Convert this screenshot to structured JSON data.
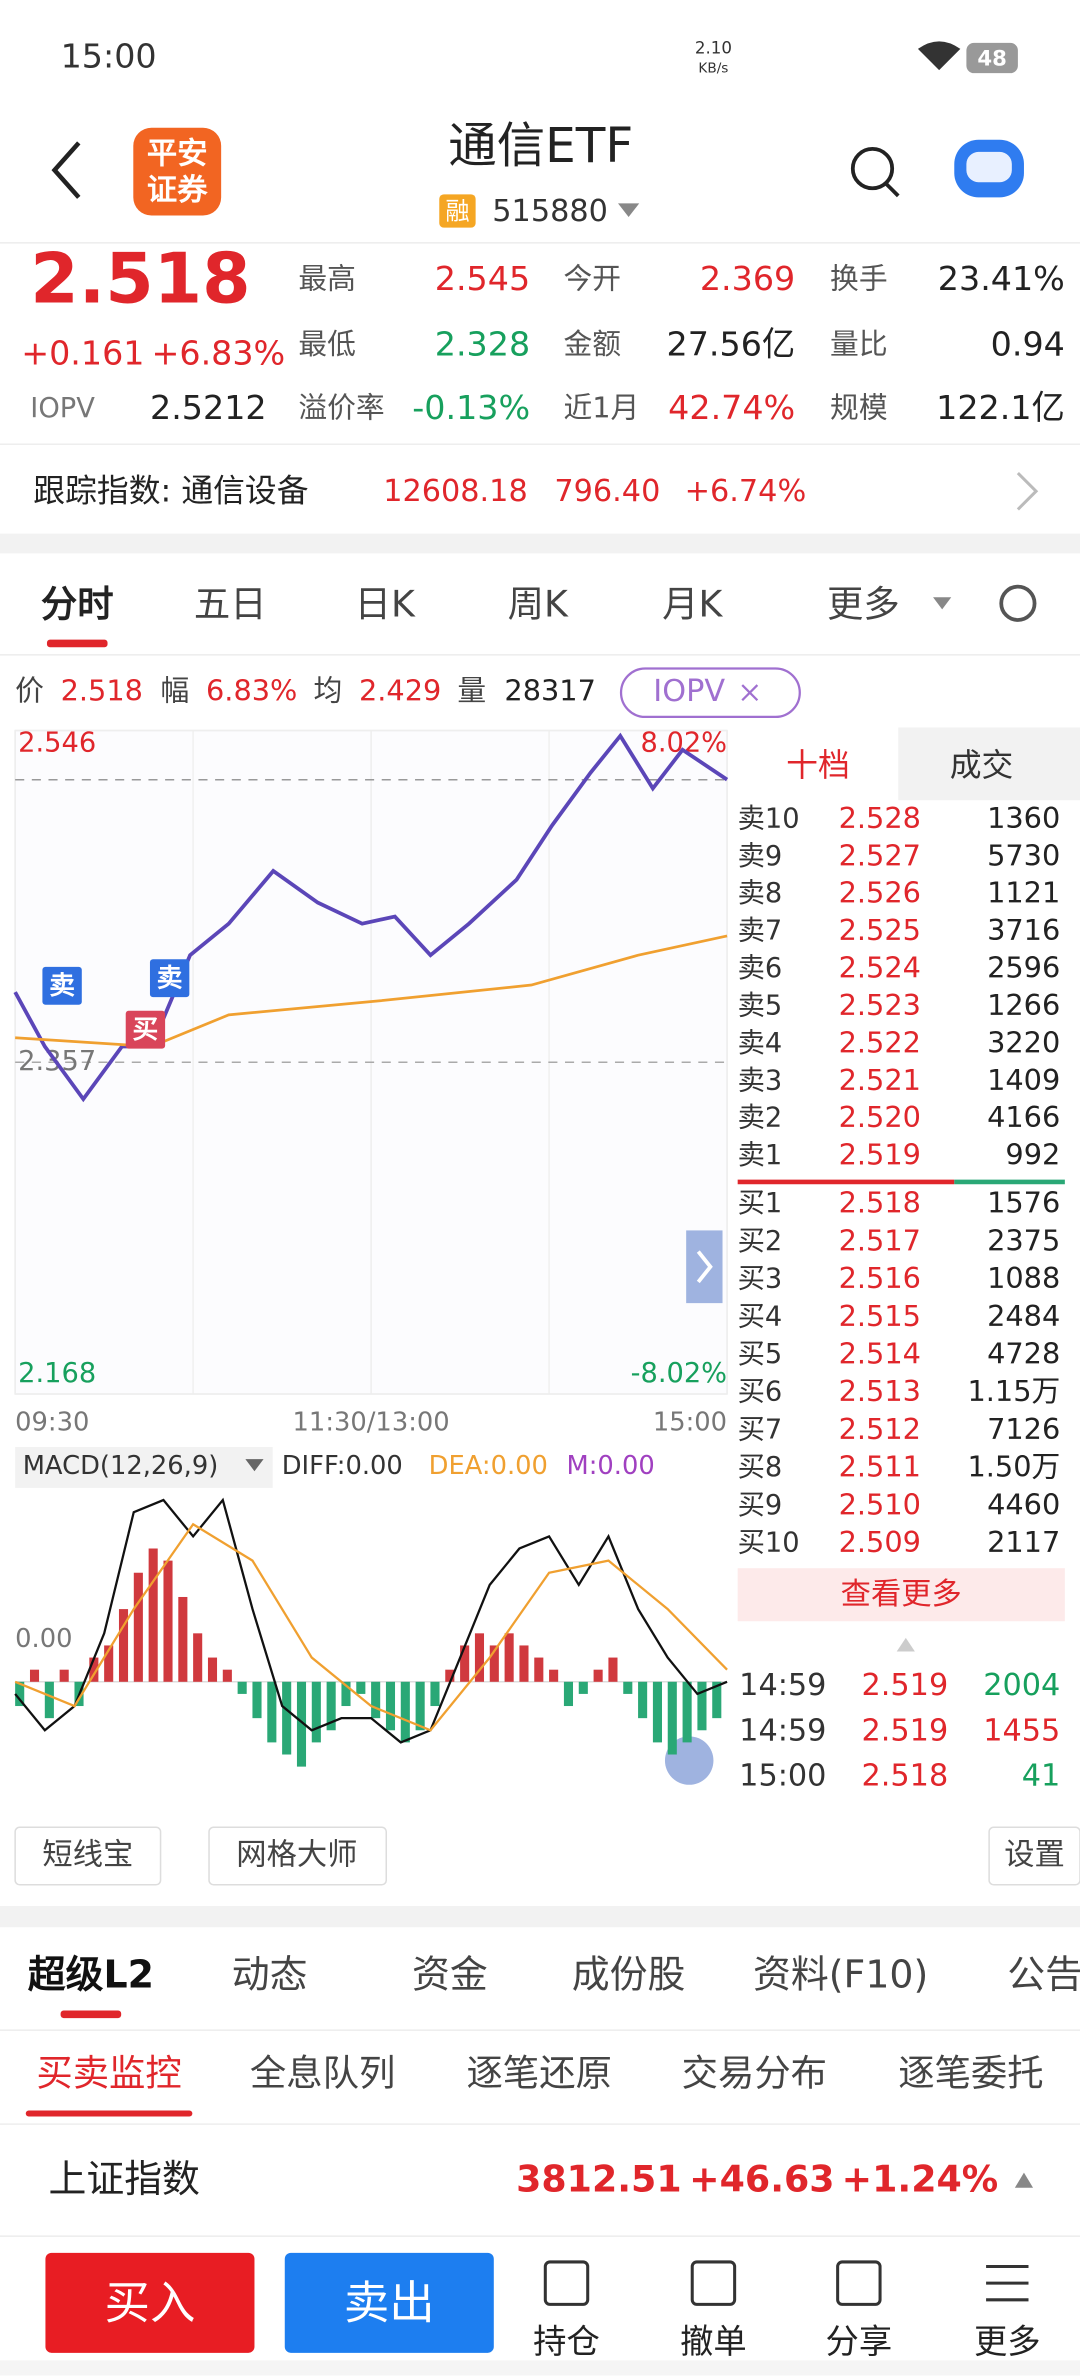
{
  "status": {
    "time": "15:00",
    "speed": "2.10",
    "speed_unit": "KB/s",
    "battery": "48"
  },
  "header": {
    "logo_top": "平安",
    "logo_bottom": "证券",
    "title": "通信ETF",
    "tag": "融",
    "code": "515880"
  },
  "quote": {
    "price": "2.518",
    "change": "+0.161",
    "pct": "+6.83%",
    "iopv_label": "IOPV",
    "iopv": "2.5212",
    "stats": [
      [
        "最高",
        "2.545"
      ],
      [
        "今开",
        "2.369"
      ],
      [
        "换手",
        "23.41%"
      ],
      [
        "最低",
        "2.328"
      ],
      [
        "金额",
        "27.56亿"
      ],
      [
        "量比",
        "0.94"
      ],
      [
        "溢价率",
        "-0.13%"
      ],
      [
        "近1月",
        "42.74%"
      ],
      [
        "规模",
        "122.1亿"
      ]
    ]
  },
  "track": {
    "label": "跟踪指数: 通信设备",
    "value": "12608.18",
    "change": "796.40",
    "pct": "+6.74%"
  },
  "tabs": [
    "分时",
    "五日",
    "日K",
    "周K",
    "月K",
    "更多"
  ],
  "info": [
    [
      "价",
      "2.518"
    ],
    [
      "幅",
      "6.83%"
    ],
    [
      "均",
      "2.429"
    ],
    [
      "量",
      "28317"
    ]
  ],
  "iopv_button": "IOPV",
  "chart_data": [
    {
      "type": "line",
      "ylim": [
        2.168,
        2.546
      ],
      "yticks": [
        2.168,
        2.357,
        2.546
      ],
      "xlim": [
        0,
        240
      ],
      "xticks": [
        {
          "value": 0,
          "label": "09:30"
        },
        {
          "value": 120,
          "label": "11:30/13:00"
        },
        {
          "value": 240,
          "label": "15:00"
        }
      ],
      "right_labels": [
        "8.02%",
        "-8.02%"
      ],
      "annotations": [
        "卖",
        "买",
        "卖"
      ],
      "grid": true,
      "series": [
        {
          "color": "#5b46b8",
          "x": [
            0,
            10,
            23,
            36,
            46,
            59,
            72,
            87,
            102,
            117,
            128,
            140,
            153,
            169,
            181,
            194,
            204,
            215,
            225,
            240
          ],
          "values": [
            2.397,
            2.366,
            2.336,
            2.366,
            2.366,
            2.418,
            2.436,
            2.466,
            2.448,
            2.436,
            2.44,
            2.418,
            2.436,
            2.461,
            2.492,
            2.522,
            2.543,
            2.513,
            2.535,
            2.518
          ]
        },
        {
          "color": "#f0a030",
          "x": [
            0,
            46,
            72,
            123,
            174,
            210,
            240
          ],
          "values": [
            2.371,
            2.366,
            2.384,
            2.392,
            2.401,
            2.418,
            2.429
          ]
        }
      ]
    },
    {
      "type": "macd",
      "title": "MACD(12,26,9)",
      "legend": [
        "DIFF:0.00",
        "DEA:0.00",
        "M:0.00"
      ],
      "ylim": [
        -0.01,
        0.016
      ],
      "yticks": [
        {
          "value": 0,
          "label": "0.00"
        }
      ],
      "xlim": [
        0,
        240
      ],
      "up_color": "#d0393e",
      "down_color": "#2aa876",
      "x": [
        0,
        5,
        10,
        15,
        20,
        25,
        30,
        35,
        40,
        45,
        50,
        55,
        60,
        65,
        70,
        75,
        80,
        85,
        90,
        95,
        100,
        105,
        110,
        115,
        120,
        125,
        130,
        135,
        140,
        145,
        150,
        155,
        160,
        165,
        170,
        175,
        180,
        185,
        190,
        195,
        200,
        205,
        210,
        215,
        220,
        225,
        230,
        235
      ],
      "values": [
        -0.002,
        0.001,
        -0.003,
        0.001,
        -0.002,
        0.002,
        0.003,
        0.006,
        0.009,
        0.011,
        0.01,
        0.007,
        0.004,
        0.002,
        0.001,
        -0.001,
        -0.003,
        -0.005,
        -0.006,
        -0.007,
        -0.005,
        -0.004,
        -0.002,
        -0.001,
        -0.003,
        -0.004,
        -0.005,
        -0.004,
        -0.002,
        0.001,
        0.003,
        0.004,
        0.003,
        0.004,
        0.003,
        0.002,
        0.001,
        -0.002,
        -0.001,
        0.001,
        0.002,
        -0.001,
        -0.003,
        -0.005,
        -0.006,
        -0.005,
        -0.004,
        -0.003
      ],
      "series": [
        {
          "color": "#111111",
          "x": [
            0,
            10,
            20,
            30,
            40,
            50,
            60,
            70,
            80,
            90,
            100,
            110,
            120,
            130,
            140,
            150,
            160,
            170,
            180,
            190,
            200,
            210,
            220,
            230,
            240
          ],
          "values": [
            -0.001,
            -0.004,
            -0.002,
            0.004,
            0.014,
            0.015,
            0.012,
            0.015,
            0.006,
            -0.002,
            -0.004,
            -0.003,
            -0.003,
            -0.005,
            -0.004,
            0.002,
            0.008,
            0.011,
            0.012,
            0.008,
            0.012,
            0.006,
            0.002,
            -0.001,
            0
          ]
        },
        {
          "color": "#f0a030",
          "x": [
            0,
            20,
            40,
            60,
            80,
            100,
            120,
            140,
            160,
            180,
            200,
            220,
            240
          ],
          "values": [
            0,
            -0.002,
            0.006,
            0.013,
            0.01,
            0.002,
            -0.002,
            -0.004,
            0.002,
            0.009,
            0.01,
            0.006,
            0.001
          ]
        }
      ]
    }
  ],
  "book": {
    "tabs": [
      "十档",
      "成交"
    ],
    "asks": [
      [
        "卖10",
        "2.528",
        "1360"
      ],
      [
        "卖9",
        "2.527",
        "5730"
      ],
      [
        "卖8",
        "2.526",
        "1121"
      ],
      [
        "卖7",
        "2.525",
        "3716"
      ],
      [
        "卖6",
        "2.524",
        "2596"
      ],
      [
        "卖5",
        "2.523",
        "1266"
      ],
      [
        "卖4",
        "2.522",
        "3220"
      ],
      [
        "卖3",
        "2.521",
        "1409"
      ],
      [
        "卖2",
        "2.520",
        "4166"
      ],
      [
        "卖1",
        "2.519",
        "992"
      ]
    ],
    "bids": [
      [
        "买1",
        "2.518",
        "1576"
      ],
      [
        "买2",
        "2.517",
        "2375"
      ],
      [
        "买3",
        "2.516",
        "1088"
      ],
      [
        "买4",
        "2.515",
        "2484"
      ],
      [
        "买5",
        "2.514",
        "4728"
      ],
      [
        "买6",
        "2.513",
        "1.15万"
      ],
      [
        "买7",
        "2.512",
        "7126"
      ],
      [
        "买8",
        "2.511",
        "1.50万"
      ],
      [
        "买9",
        "2.510",
        "4460"
      ],
      [
        "买10",
        "2.509",
        "2117"
      ]
    ],
    "more": "查看更多",
    "trades": [
      [
        "14:59",
        "2.519",
        "2004"
      ],
      [
        "14:59",
        "2.519",
        "1455"
      ],
      [
        "15:00",
        "2.518",
        "41"
      ]
    ]
  },
  "tools": [
    "短线宝",
    "网格大师",
    "设置"
  ],
  "tabs2": [
    "超级L2",
    "动态",
    "资金",
    "成份股",
    "资料(F10)",
    "公告"
  ],
  "tabs3": [
    "买卖监控",
    "全息队列",
    "逐笔还原",
    "交易分布",
    "逐笔委托"
  ],
  "market": {
    "name": "上证指数",
    "value": "3812.51",
    "change": "+46.63",
    "pct": "+1.24%"
  },
  "bottom": {
    "buy": "买入",
    "sell": "卖出",
    "actions": [
      "持仓",
      "撤单",
      "分享",
      "更多"
    ]
  }
}
